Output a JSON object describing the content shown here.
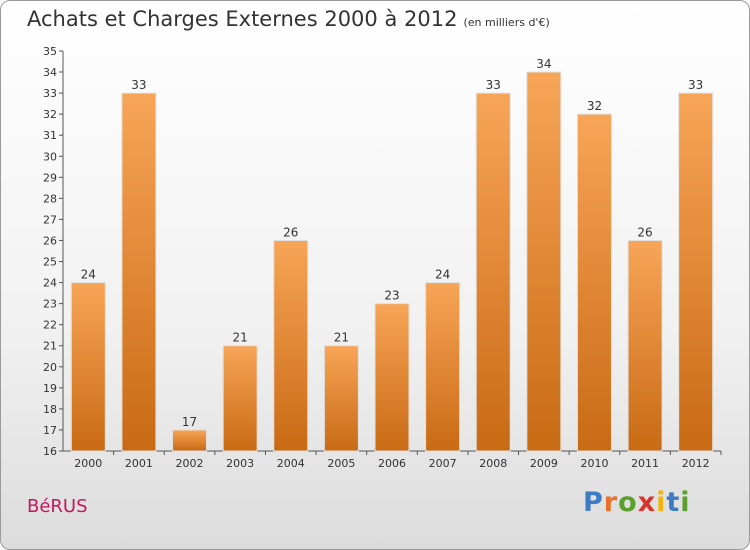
{
  "header": {
    "title": "Achats et Charges Externes 2000 à 2012",
    "unit": "(en milliers d'€)"
  },
  "footer": {
    "commune": "BéRUS",
    "logo": {
      "letters": [
        "P",
        "r",
        "o",
        "x",
        "i",
        "t",
        "i"
      ],
      "colors": [
        "#3d7cc4",
        "#e8702a",
        "#5aa02c",
        "#d4342c",
        "#f2b40a",
        "#3d7cc4",
        "#5aa02c"
      ]
    }
  },
  "chart_data": {
    "type": "bar",
    "title": "Achats et Charges Externes 2000 à 2012",
    "subtitle": "(en milliers d'€)",
    "xlabel": "",
    "ylabel": "",
    "categories": [
      "2000",
      "2001",
      "2002",
      "2003",
      "2004",
      "2005",
      "2006",
      "2007",
      "2008",
      "2009",
      "2010",
      "2011",
      "2012"
    ],
    "values": [
      24,
      33,
      17,
      21,
      26,
      21,
      23,
      24,
      33,
      34,
      32,
      26,
      33
    ],
    "ylim": [
      16,
      35
    ],
    "yticks": [
      16,
      17,
      18,
      19,
      20,
      21,
      22,
      23,
      24,
      25,
      26,
      27,
      28,
      29,
      30,
      31,
      32,
      33,
      34,
      35
    ],
    "grid": false,
    "legend": "none",
    "colors": {
      "bar_top": "#f7a557",
      "bar_bottom": "#c96a14",
      "bar_edge": "#e0e0e0"
    }
  }
}
